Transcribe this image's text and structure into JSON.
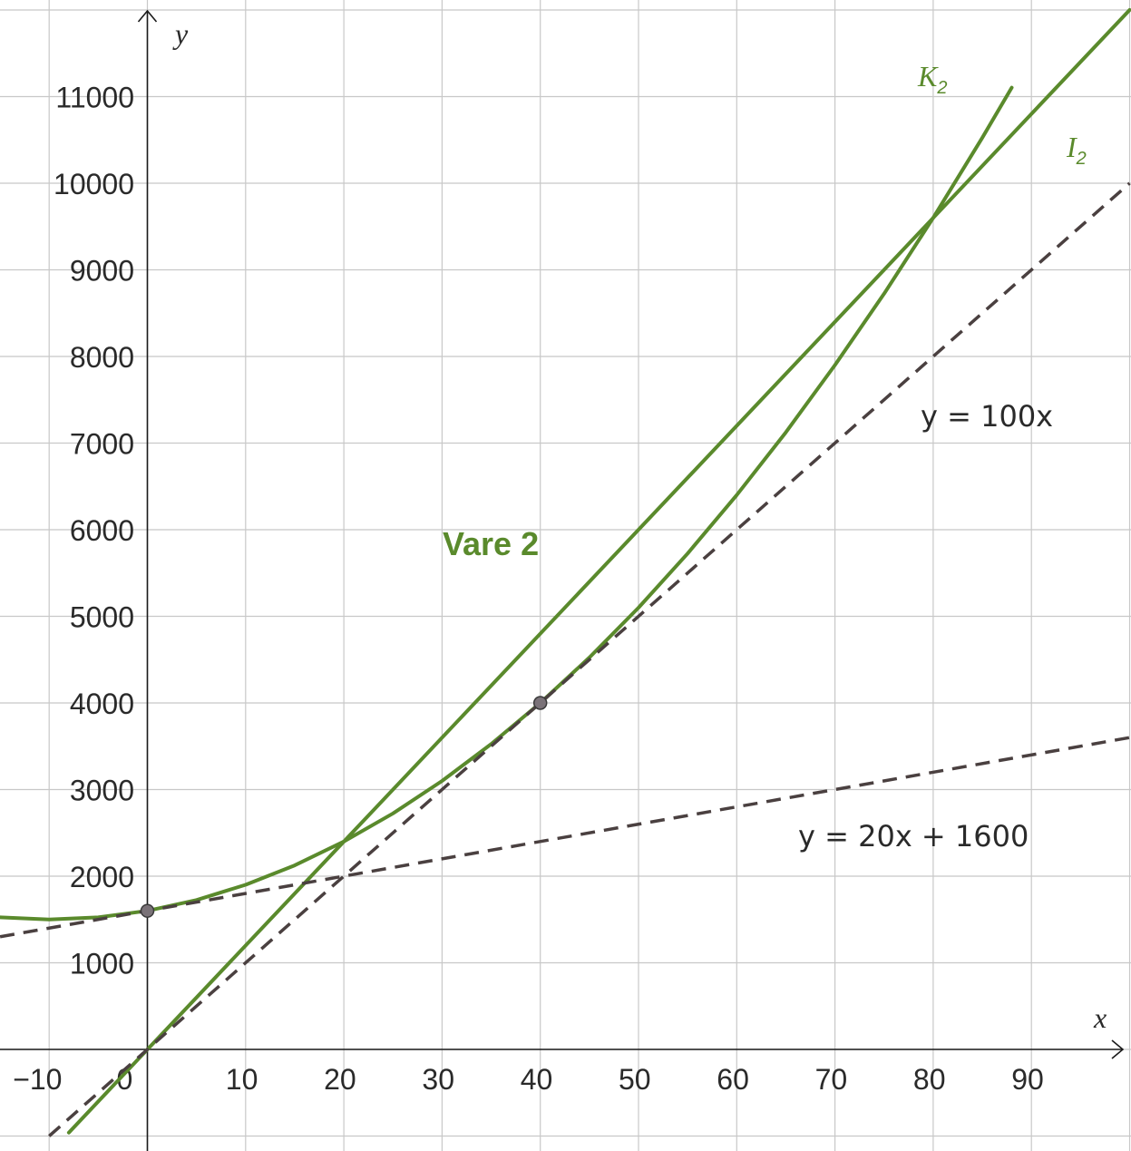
{
  "chart_data": {
    "type": "line",
    "title": "Vare 2",
    "xlabel": "x",
    "ylabel": "y",
    "xlim": [
      -15,
      100
    ],
    "ylim": [
      -1000,
      11800
    ],
    "grid": true,
    "x_ticks": [
      {
        "value": -10,
        "label": "−10"
      },
      {
        "value": 0,
        "label": "0"
      },
      {
        "value": 10,
        "label": "10"
      },
      {
        "value": 20,
        "label": "20"
      },
      {
        "value": 30,
        "label": "30"
      },
      {
        "value": 40,
        "label": "40"
      },
      {
        "value": 50,
        "label": "50"
      },
      {
        "value": 60,
        "label": "60"
      },
      {
        "value": 70,
        "label": "70"
      },
      {
        "value": 80,
        "label": "80"
      },
      {
        "value": 90,
        "label": "90"
      }
    ],
    "y_ticks": [
      {
        "value": 1000,
        "label": "1000"
      },
      {
        "value": 2000,
        "label": "2000"
      },
      {
        "value": 3000,
        "label": "3000"
      },
      {
        "value": 4000,
        "label": "4000"
      },
      {
        "value": 5000,
        "label": "5000"
      },
      {
        "value": 6000,
        "label": "6000"
      },
      {
        "value": 7000,
        "label": "7000"
      },
      {
        "value": 8000,
        "label": "8000"
      },
      {
        "value": 9000,
        "label": "9000"
      },
      {
        "value": 10000,
        "label": "10000"
      },
      {
        "value": 11000,
        "label": "11000"
      }
    ],
    "series": [
      {
        "name": "K",
        "subscript": "2",
        "style": "solid",
        "color": "#5a8a2c",
        "x": [
          -15,
          -10,
          -5,
          0,
          5,
          10,
          15,
          20,
          25,
          30,
          35,
          40,
          45,
          50,
          55,
          60,
          65,
          70,
          75,
          80,
          85,
          88
        ],
        "y": [
          1525,
          1500,
          1525,
          1600,
          1725,
          1900,
          2125,
          2400,
          2725,
          3100,
          3525,
          4000,
          4525,
          5100,
          5725,
          6400,
          7125,
          7900,
          8725,
          9600,
          10525,
          11104
        ]
      },
      {
        "name": "I",
        "subscript": "2",
        "style": "solid",
        "color": "#5a8a2c",
        "x": [
          -8,
          100
        ],
        "y": [
          -960,
          12000
        ]
      },
      {
        "name": "y = 100x",
        "style": "dashed",
        "color": "#4a4040",
        "x": [
          -10,
          100
        ],
        "y": [
          -1000,
          10000
        ]
      },
      {
        "name": "y = 20x + 1600",
        "style": "dashed",
        "color": "#4a4040",
        "x": [
          -15,
          100
        ],
        "y": [
          1300,
          3600
        ]
      }
    ],
    "points": [
      {
        "x": 0,
        "y": 1600
      },
      {
        "x": 40,
        "y": 4000
      }
    ],
    "labels": {
      "title": "Vare 2",
      "k2_main": "K",
      "k2_sub": "2",
      "i2_main": "I",
      "i2_sub": "2",
      "eq_100x": "y = 100x",
      "eq_20x": "y = 20x + 1600"
    },
    "colors": {
      "curve": "#5a8a2c",
      "dashed": "#4a4040",
      "point_fill": "#7a7278",
      "grid": "#c8c8c8",
      "axis": "#1a1a1a"
    }
  }
}
